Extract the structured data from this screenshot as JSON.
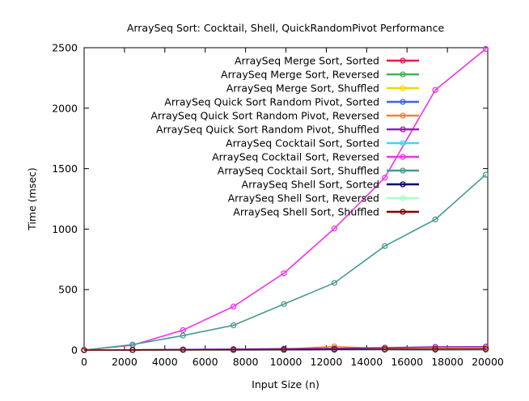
{
  "chart_data": {
    "type": "line",
    "title": "ArraySeq Sort: Cocktail, Shell, QuickRandomPivot Performance",
    "xlabel": "Input Size (n)",
    "ylabel": "Time (msec)",
    "xlim": [
      0,
      20000
    ],
    "ylim": [
      0,
      2500
    ],
    "xticks": [
      "0",
      "2000",
      "4000",
      "6000",
      "8000",
      "10000",
      "12000",
      "14000",
      "16000",
      "18000",
      "20000"
    ],
    "yticks": [
      "0",
      "500",
      "1000",
      "1500",
      "2000",
      "2500"
    ],
    "grid": false,
    "legend_position": "top-right",
    "x": [
      0,
      2400,
      4900,
      7400,
      9900,
      12400,
      14900,
      17400,
      19900
    ],
    "series": [
      {
        "name": "ArraySeq Merge Sort, Sorted",
        "color": "#e6194b",
        "values": [
          0,
          1,
          2,
          3,
          4,
          5,
          6,
          7,
          8
        ]
      },
      {
        "name": "ArraySeq Merge Sort, Reversed",
        "color": "#3cb44b",
        "values": [
          0,
          1,
          2,
          3,
          4,
          5,
          6,
          7,
          8
        ]
      },
      {
        "name": "ArraySeq Merge Sort, Shuffled",
        "color": "#f5d800",
        "values": [
          0,
          1,
          3,
          4,
          6,
          7,
          9,
          10,
          12
        ]
      },
      {
        "name": "ArraySeq Quick Sort Random Pivot, Sorted",
        "color": "#4363d8",
        "values": [
          0,
          1,
          2,
          4,
          5,
          6,
          8,
          9,
          10
        ]
      },
      {
        "name": "ArraySeq Quick Sort Random Pivot, Reversed",
        "color": "#f58231",
        "values": [
          0,
          1,
          3,
          5,
          7,
          30,
          11,
          13,
          15
        ]
      },
      {
        "name": "ArraySeq Quick Sort Random Pivot, Shuffled",
        "color": "#911eb4",
        "values": [
          0,
          2,
          5,
          8,
          11,
          14,
          20,
          26,
          28
        ]
      },
      {
        "name": "ArraySeq Cocktail Sort, Sorted",
        "color": "#42d4f4",
        "values": [
          0,
          0,
          0,
          0,
          1,
          1,
          1,
          1,
          1
        ]
      },
      {
        "name": "ArraySeq Cocktail Sort, Reversed",
        "color": "#f032e6",
        "values": [
          0,
          40,
          165,
          360,
          635,
          1005,
          1425,
          2150,
          2490
        ]
      },
      {
        "name": "ArraySeq Cocktail Sort, Shuffled",
        "color": "#469990",
        "values": [
          0,
          45,
          120,
          205,
          380,
          555,
          860,
          1080,
          1450
        ]
      },
      {
        "name": "ArraySeq Shell Sort, Sorted",
        "color": "#000075",
        "values": [
          0,
          0,
          1,
          1,
          1,
          2,
          2,
          2,
          3
        ]
      },
      {
        "name": "ArraySeq Shell Sort, Reversed",
        "color": "#aaffc3",
        "values": [
          0,
          1,
          1,
          2,
          2,
          3,
          3,
          4,
          4
        ]
      },
      {
        "name": "ArraySeq Shell Sort, Shuffled",
        "color": "#800000",
        "values": [
          0,
          1,
          2,
          3,
          4,
          5,
          6,
          7,
          8
        ]
      }
    ]
  }
}
